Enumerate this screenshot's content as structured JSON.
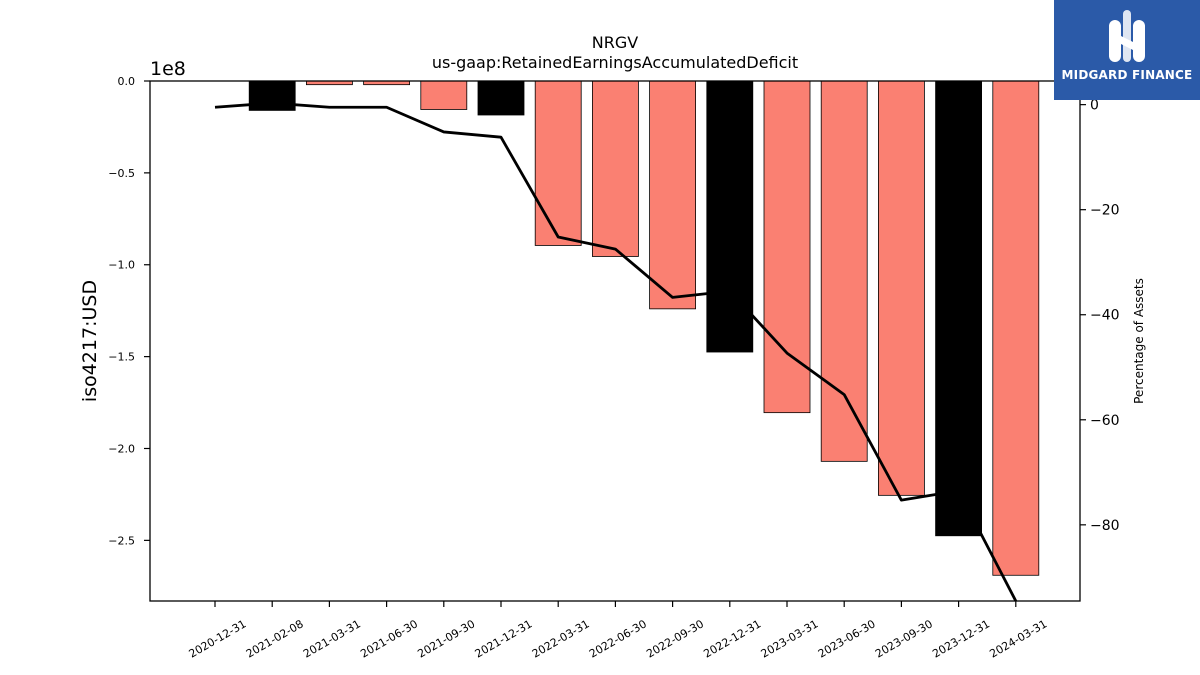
{
  "chart_data": {
    "type": "bar",
    "title": "NRGV",
    "subtitle": "us-gaap:RetainedEarningsAccumulatedDeficit",
    "ylabel": "iso4217:USD",
    "y_multiplier": "1e8",
    "y2label": "Percentage of Assets",
    "ylim": [
      -2.83,
      0
    ],
    "y2lim": [
      -94.5,
      4.5
    ],
    "yticks": [
      0.0,
      -0.5,
      -1.0,
      -1.5,
      -2.0,
      -2.5
    ],
    "ytick_labels": [
      "0.0",
      "−0.5",
      "−1.0",
      "−1.5",
      "−2.0",
      "−2.5"
    ],
    "y2ticks": [
      0,
      -20,
      -40,
      -60,
      -80
    ],
    "y2tick_labels": [
      "0",
      "−20",
      "−40",
      "−60",
      "−80"
    ],
    "categories": [
      "2020-12-31",
      "2021-02-08",
      "2021-03-31",
      "2021-06-30",
      "2021-09-30",
      "2021-12-31",
      "2022-03-31",
      "2022-06-30",
      "2022-09-30",
      "2022-12-31",
      "2023-03-31",
      "2023-06-30",
      "2023-09-30",
      "2023-12-31",
      "2024-03-31"
    ],
    "series": [
      {
        "kind": "bar",
        "axis": "left",
        "values": [
          null,
          -0.16,
          -0.02,
          -0.02,
          -0.155,
          -0.185,
          -0.895,
          -0.955,
          -1.24,
          -1.475,
          -1.805,
          -2.07,
          -2.255,
          -2.475,
          -2.69
        ],
        "colors": [
          "#fa8072",
          "#000000",
          "#fa8072",
          "#fa8072",
          "#fa8072",
          "#000000",
          "#fa8072",
          "#fa8072",
          "#fa8072",
          "#000000",
          "#fa8072",
          "#fa8072",
          "#fa8072",
          "#000000",
          "#fa8072"
        ]
      },
      {
        "kind": "line",
        "axis": "right",
        "color": "#000000",
        "values": [
          -0.5,
          0.3,
          -0.5,
          -0.5,
          -5.2,
          -6.2,
          -25.2,
          -27.5,
          -36.7,
          -35.5,
          -47.3,
          -55.2,
          -75.3,
          -73.5,
          -94.5
        ]
      }
    ],
    "grid": false,
    "legend": "none"
  },
  "logo": {
    "text": "MIDGARD FINANCE",
    "bg": "#2b5aa8"
  }
}
